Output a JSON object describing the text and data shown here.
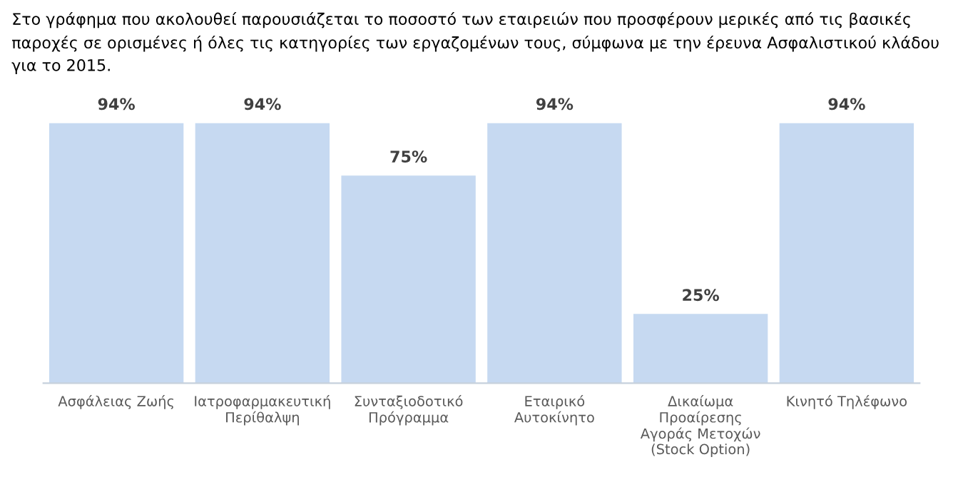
{
  "chart_data": {
    "type": "bar",
    "title": "Στο γράφημα που ακολουθεί παρουσιάζεται το ποσοστό των εταιρειών που προσφέρουν μερικές από τις βασικές παροχές σε ορισμένες ή όλες τις κατηγορίες των εργαζομένων τους, σύμφωνα με την έρευνα Ασφαλιστικού κλάδου για το 2015.",
    "categories": [
      "Ασφάλειας Ζωής",
      "Ιατροφαρμακευτική\nΠερίθαλψη",
      "Συνταξιοδοτικό\nΠρόγραμμα",
      "Εταιρικό\nΑυτοκίνητο",
      "Δικαίωμα\nΠροαίρεσης\nΑγοράς Μετοχών\n(Stock Option)",
      "Κινητό Τηλέφωνο"
    ],
    "values": [
      94,
      94,
      75,
      94,
      25,
      94
    ],
    "value_labels": [
      "94%",
      "94%",
      "75%",
      "94%",
      "25%",
      "94%"
    ],
    "color": "#c6d9f1"
  }
}
